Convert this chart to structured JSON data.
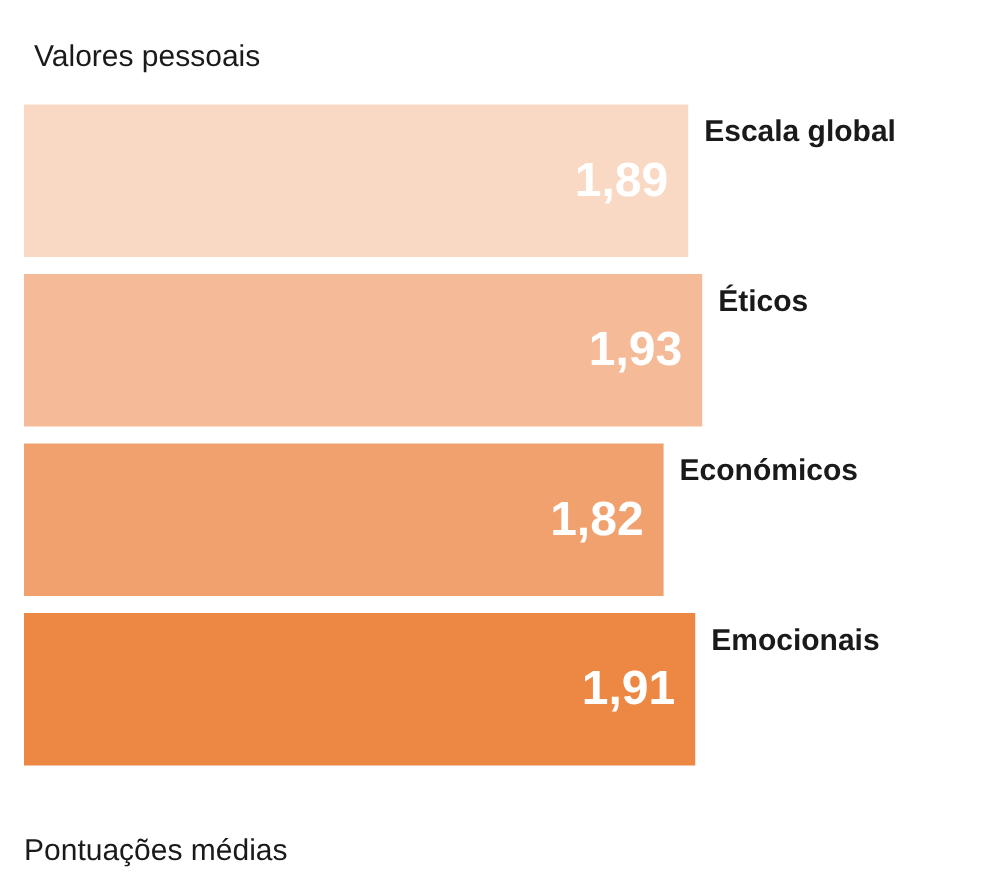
{
  "chart_data": {
    "type": "bar",
    "orientation": "horizontal",
    "title": "Valores pessoais",
    "xlabel": "Pontuações médias",
    "categories": [
      "Escala global",
      "Éticos",
      "Económicos",
      "Emocionais"
    ],
    "values": [
      1.89,
      1.93,
      1.82,
      1.91
    ],
    "value_labels": [
      "1,89",
      "1,93",
      "1,82",
      "1,91"
    ],
    "colors": [
      "#f9d9c4",
      "#f5bb98",
      "#f0a16e",
      "#ed8844"
    ]
  }
}
